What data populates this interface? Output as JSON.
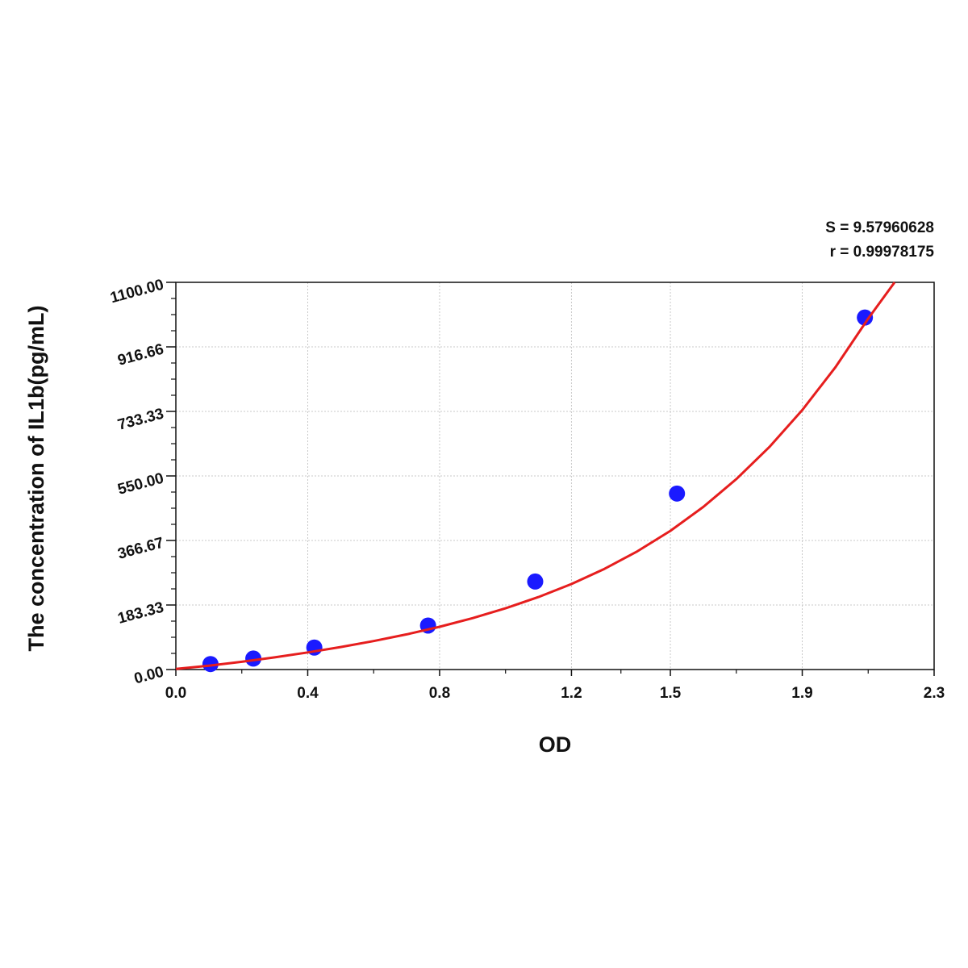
{
  "chart_data": {
    "type": "scatter",
    "xlabel": "OD",
    "ylabel": "The concentration of IL1b(pg/mL)",
    "xlim": [
      0.0,
      2.3
    ],
    "ylim": [
      0.0,
      1100.0
    ],
    "x_ticks": [
      0.0,
      0.4,
      0.8,
      1.2,
      1.5,
      1.9,
      2.3
    ],
    "x_tick_labels": [
      "0.0",
      "0.4",
      "0.8",
      "1.2",
      "1.5",
      "1.9",
      "2.3"
    ],
    "y_ticks": [
      0.0,
      183.33,
      366.67,
      550.0,
      733.33,
      916.66,
      1100.0
    ],
    "y_tick_labels": [
      "0.00",
      "183.33",
      "366.67",
      "550.00",
      "733.33",
      "916.66",
      "1100.00"
    ],
    "grid": true,
    "series": [
      {
        "kind": "points",
        "color": "#1a1aff",
        "x": [
          0.105,
          0.235,
          0.42,
          0.765,
          1.09,
          1.52,
          2.09
        ],
        "y": [
          15.6,
          31.2,
          62.5,
          125.0,
          250.0,
          500.0,
          1000.0
        ]
      },
      {
        "kind": "fit-curve",
        "color": "#e61e1e",
        "x": [
          0.0,
          0.1,
          0.2,
          0.3,
          0.4,
          0.5,
          0.6,
          0.7,
          0.8,
          0.9,
          1.0,
          1.1,
          1.2,
          1.3,
          1.4,
          1.5,
          1.6,
          1.7,
          1.8,
          1.9,
          2.0,
          2.1,
          2.18
        ],
        "y": [
          1.5,
          11.0,
          22.0,
          34.5,
          48.5,
          64.0,
          81.0,
          100.0,
          121.5,
          146.0,
          174.0,
          206.0,
          243.0,
          286.0,
          336.0,
          394.0,
          462.0,
          541.0,
          632.0,
          737.0,
          858.0,
          997.0,
          1100.0
        ]
      }
    ],
    "annotations": {
      "s_value": "S = 9.57960628",
      "r_value": "r = 0.99978175"
    }
  }
}
